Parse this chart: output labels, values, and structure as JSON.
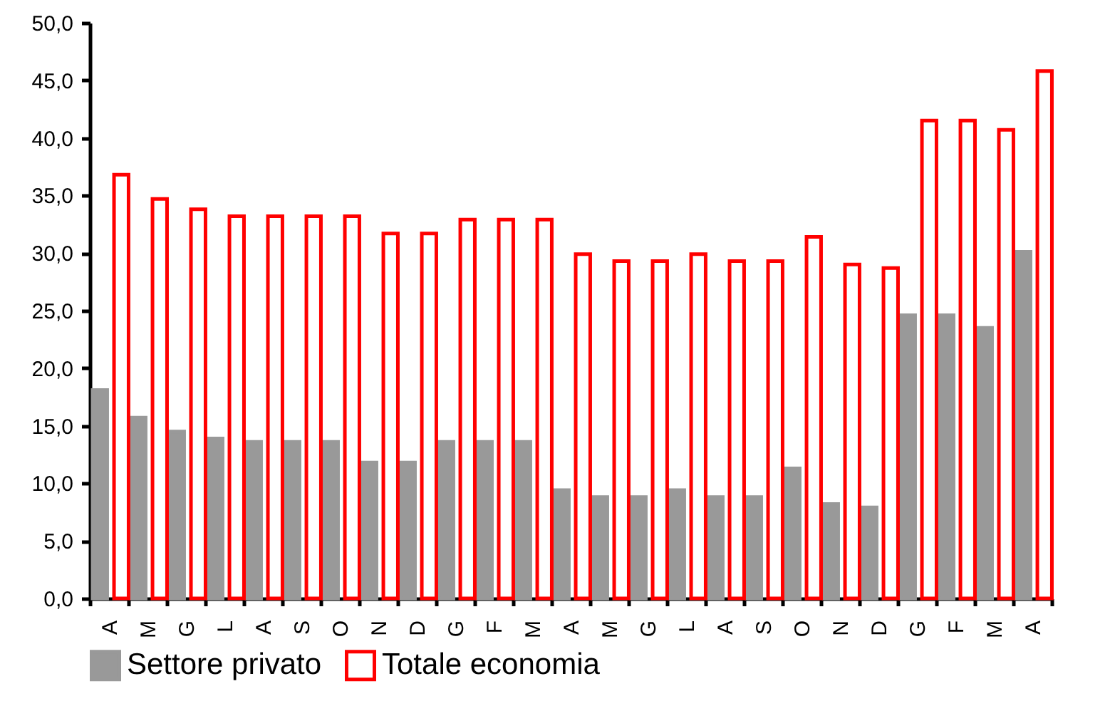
{
  "chart_data": {
    "type": "bar",
    "categories": [
      "A",
      "M",
      "G",
      "L",
      "A",
      "S",
      "O",
      "N",
      "D",
      "G",
      "F",
      "M",
      "A",
      "M",
      "G",
      "L",
      "A",
      "S",
      "O",
      "N",
      "D",
      "G",
      "F",
      "M",
      "A"
    ],
    "series": [
      {
        "name": "Settore privato",
        "color": "#999999",
        "values": [
          18.1,
          15.7,
          14.5,
          13.9,
          13.6,
          13.6,
          13.6,
          11.8,
          11.8,
          13.6,
          13.6,
          13.6,
          9.4,
          8.8,
          8.8,
          9.4,
          8.8,
          8.8,
          11.3,
          8.2,
          7.9,
          24.6,
          24.6,
          23.5,
          30.1
        ]
      },
      {
        "name": "Totale economia",
        "color": "#ff0000",
        "values": [
          36.8,
          34.7,
          33.8,
          33.2,
          33.2,
          33.2,
          33.2,
          31.7,
          31.7,
          32.9,
          32.9,
          32.9,
          29.9,
          29.3,
          29.3,
          29.9,
          29.3,
          29.3,
          31.4,
          29.0,
          28.7,
          41.5,
          41.5,
          40.7,
          45.8
        ]
      }
    ],
    "ylim": [
      0,
      50
    ],
    "yticks": [
      {
        "value": 0,
        "label": "0,0"
      },
      {
        "value": 5,
        "label": "5,0"
      },
      {
        "value": 10,
        "label": "10,0"
      },
      {
        "value": 15,
        "label": "15,0"
      },
      {
        "value": 20,
        "label": "20,0"
      },
      {
        "value": 25,
        "label": "25,0"
      },
      {
        "value": 30,
        "label": "30,0"
      },
      {
        "value": 35,
        "label": "35,0"
      },
      {
        "value": 40,
        "label": "40,0"
      },
      {
        "value": 45,
        "label": "45,0"
      },
      {
        "value": 50,
        "label": "50,0"
      }
    ],
    "grid": false,
    "legend": "bottom"
  }
}
